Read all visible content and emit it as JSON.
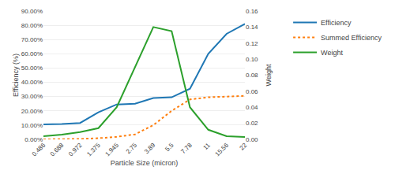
{
  "chart_data": {
    "type": "line",
    "xlabel": "Particle Size (micron)",
    "ylabel": "Efficiency (%)",
    "y2label": "Weight",
    "categories": [
      "0.486",
      "0.688",
      "0.972",
      "1.375",
      "1.945",
      "2.75",
      "3.89",
      "5.5",
      "7.78",
      "11",
      "15.56",
      "22"
    ],
    "series": [
      {
        "name": "Efficiency",
        "values": [
          0.105,
          0.107,
          0.115,
          0.19,
          0.245,
          0.25,
          0.29,
          0.295,
          0.355,
          0.6,
          0.74,
          0.81
        ],
        "line_style": "solid"
      },
      {
        "name": "Summed Efficiency",
        "values": [
          0.0,
          0.001,
          0.003,
          0.008,
          0.018,
          0.035,
          0.1,
          0.2,
          0.28,
          0.295,
          0.3,
          0.305
        ],
        "line_style": "dotted"
      },
      {
        "name": "Weight",
        "values": [
          0.004,
          0.006,
          0.009,
          0.014,
          0.04,
          0.09,
          0.14,
          0.135,
          0.04,
          0.012,
          0.004,
          0.003
        ],
        "axis": "y2",
        "line_style": "solid"
      }
    ],
    "ylim": [
      0,
      0.9
    ],
    "yticks": [
      {
        "value": 0,
        "label": "0.00%"
      },
      {
        "value": 0.1,
        "label": "10.00%"
      },
      {
        "value": 0.2,
        "label": "20.00%"
      },
      {
        "value": 0.3,
        "label": "30.00%"
      },
      {
        "value": 0.4,
        "label": "40.00%"
      },
      {
        "value": 0.5,
        "label": "50.00%"
      },
      {
        "value": 0.6,
        "label": "60.00%"
      },
      {
        "value": 0.7,
        "label": "70.00%"
      },
      {
        "value": 0.8,
        "label": "80.00%"
      },
      {
        "value": 0.9,
        "label": "90.00%"
      }
    ],
    "y2lim": [
      0,
      0.16
    ],
    "y2ticks": [
      {
        "value": 0,
        "label": "0.00"
      },
      0.02,
      0.04,
      0.06,
      0.08,
      {
        "value": 0.1,
        "label": "0.10"
      },
      0.12,
      0.14,
      0.16
    ],
    "grid": true,
    "legend": "right"
  }
}
